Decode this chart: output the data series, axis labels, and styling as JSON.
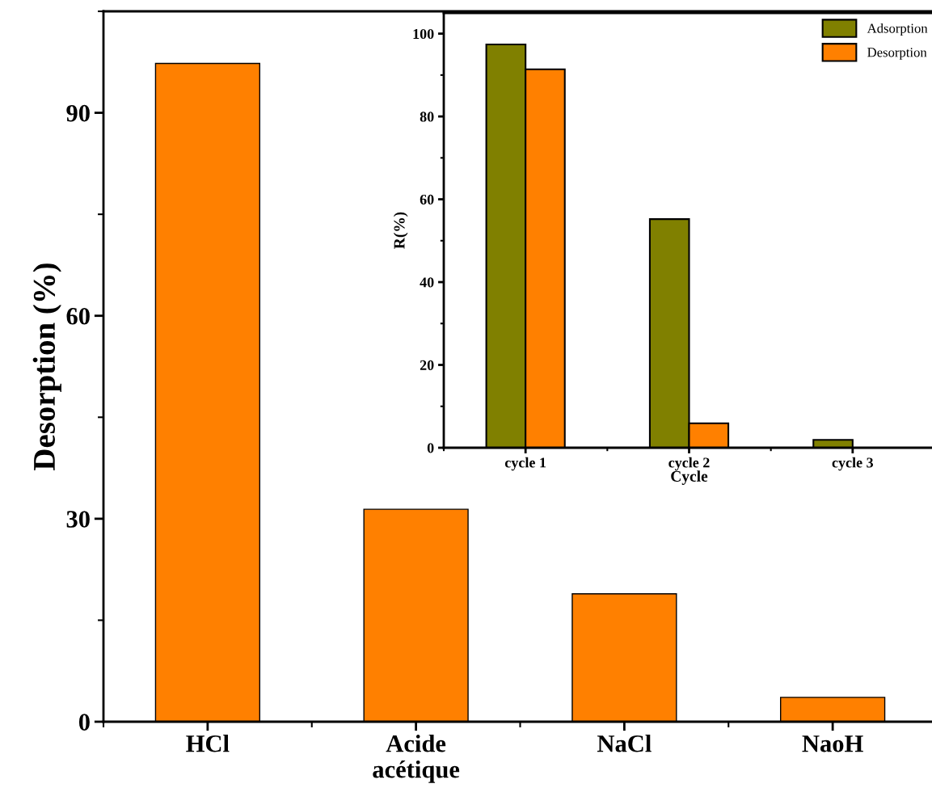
{
  "chart_data": [
    {
      "type": "bar",
      "ylabel": "Desorption (%)",
      "categories": [
        "HCl",
        "Acide\nacétique",
        "NaCl",
        "NaoH"
      ],
      "values": [
        97.3,
        31.4,
        18.9,
        3.6
      ],
      "color": "#ff8000",
      "ylim": [
        0,
        105
      ],
      "yticks": [
        0,
        30,
        60,
        90
      ],
      "grid": false,
      "legend": false
    },
    {
      "type": "bar",
      "xlabel": "Cycle",
      "ylabel": "R(%)",
      "categories": [
        "cycle 1",
        "cycle 2",
        "cycle 3"
      ],
      "series": [
        {
          "name": "Adsorption",
          "color": "#808000",
          "values": [
            97.4,
            55.2,
            1.9
          ]
        },
        {
          "name": "Desorption",
          "color": "#ff8000",
          "values": [
            91.4,
            5.9,
            null
          ]
        }
      ],
      "ylim": [
        0,
        105
      ],
      "yticks": [
        0,
        20,
        40,
        60,
        80,
        100
      ],
      "grid": false,
      "legend": "top right"
    }
  ]
}
